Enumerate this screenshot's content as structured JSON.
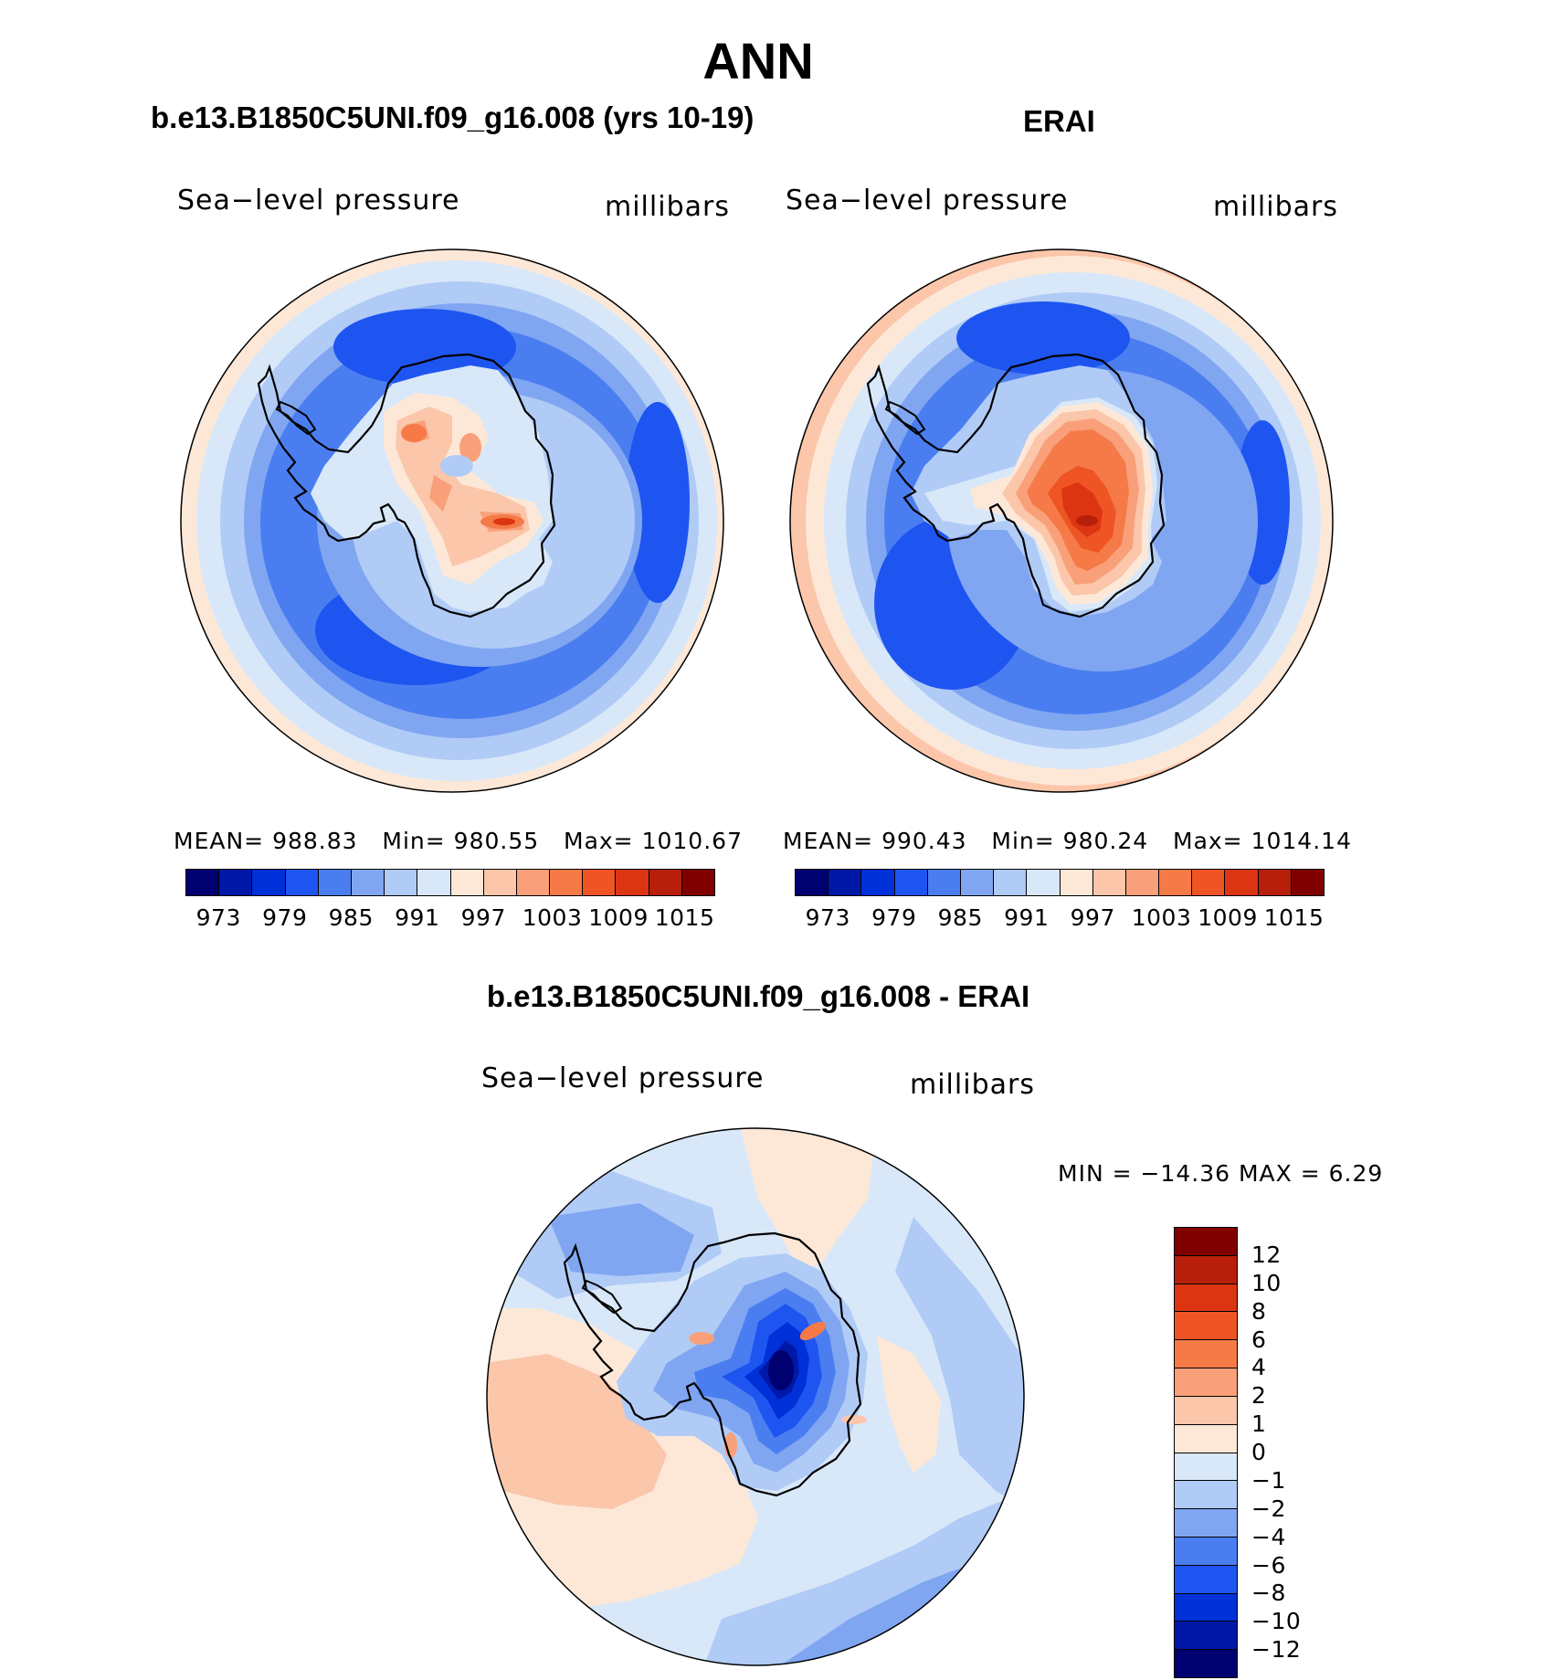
{
  "title": "ANN",
  "variable": "Sea−level pressure",
  "units": "millibars",
  "panels": [
    {
      "subtitle": "b.e13.B1850C5UNI.f09_g16.008 (yrs 10-19)",
      "stats": {
        "mean_label": "MEAN=",
        "mean": "988.83",
        "min_label": "Min=",
        "min": "980.55",
        "max_label": "Max=",
        "max": "1010.67"
      }
    },
    {
      "subtitle": "ERAI",
      "stats": {
        "mean_label": "MEAN=",
        "mean": "990.43",
        "min_label": "Min=",
        "min": "980.24",
        "max_label": "Max=",
        "max": "1014.14"
      }
    }
  ],
  "abs_colorbar": {
    "colors": [
      "#000070",
      "#0018a8",
      "#0030d8",
      "#1e55f0",
      "#4a7ef0",
      "#80a6f2",
      "#b0cbf6",
      "#d8e8f9",
      "#fde8d8",
      "#fbc6aa",
      "#f9a07a",
      "#f57a48",
      "#ef5424",
      "#dc3512",
      "#b71f0b",
      "#800000"
    ],
    "labels": [
      "973",
      "979",
      "985",
      "991",
      "997",
      "1003",
      "1009",
      "1015"
    ]
  },
  "diff": {
    "subtitle": "b.e13.B1850C5UNI.f09_g16.008 - ERAI",
    "stats": "MIN  =  −14.36  MAX  =     6.29",
    "colors_top_to_bottom": [
      "#800000",
      "#b71f0b",
      "#dc3512",
      "#ef5424",
      "#f57a48",
      "#f9a07a",
      "#fbc6aa",
      "#fde8d8",
      "#d8e8f9",
      "#b0cbf6",
      "#80a6f2",
      "#4a7ef0",
      "#1e55f0",
      "#0030d8",
      "#0018a8",
      "#000070"
    ],
    "labels_top_to_bottom": [
      "12",
      "10",
      "8",
      "6",
      "4",
      "2",
      "1",
      "0",
      "−1",
      "−2",
      "−4",
      "−6",
      "−8",
      "−10",
      "−12"
    ]
  }
}
